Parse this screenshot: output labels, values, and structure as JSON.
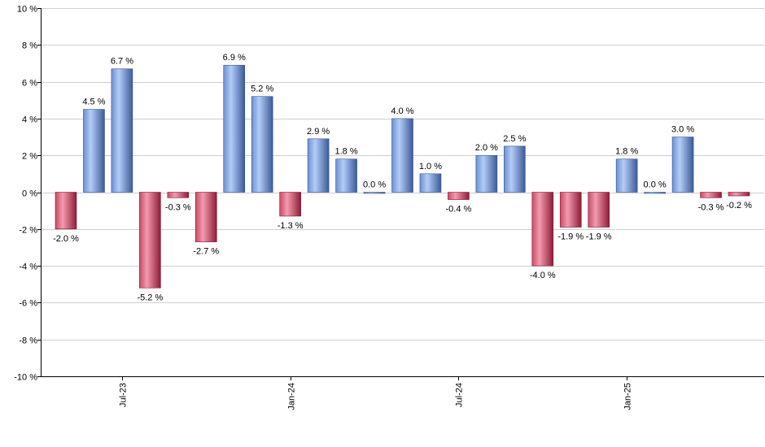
{
  "chart_data": {
    "type": "bar",
    "values": [
      -2.0,
      4.5,
      6.7,
      -5.2,
      -0.3,
      -2.7,
      6.9,
      5.2,
      -1.3,
      2.9,
      1.8,
      0.0,
      4.0,
      1.0,
      -0.4,
      2.0,
      2.5,
      -4.0,
      -1.9,
      -1.9,
      1.8,
      0.0,
      3.0,
      -0.3,
      -0.2
    ],
    "data_labels": [
      "-2.0 %",
      "4.5 %",
      "6.7 %",
      "-5.2 %",
      "-0.3 %",
      "-2.7 %",
      "6.9 %",
      "5.2 %",
      "-1.3 %",
      "2.9 %",
      "1.8 %",
      "0.0 %",
      "4.0 %",
      "1.0 %",
      "-0.4 %",
      "2.0 %",
      "2.5 %",
      "-4.0 %",
      "-1.9 %",
      "-1.9 %",
      "1.8 %",
      "0.0 %",
      "3.0 %",
      "-0.3 %",
      "-0.2 %"
    ],
    "x_ticks": [
      {
        "label": "Jul-23",
        "index": 2
      },
      {
        "label": "Jan-24",
        "index": 8
      },
      {
        "label": "Jul-24",
        "index": 14
      },
      {
        "label": "Jan-25",
        "index": 20
      }
    ],
    "y_ticks": [
      "10 %",
      "8 %",
      "6 %",
      "4 %",
      "2 %",
      "0 %",
      "-2 %",
      "-4 %",
      "-6 %",
      "-8 %",
      "-10 %"
    ],
    "ylim": [
      -10,
      10
    ],
    "y_step": 2,
    "grid": true,
    "title": "",
    "xlabel": "",
    "ylabel": "",
    "colors": {
      "positive_light": "#a9c4f5",
      "positive_dark": "#3f5f9e",
      "negative_light": "#f08aa0",
      "negative_dark": "#9e1f3c",
      "grid": "#cfcfcf",
      "axis": "#000000"
    }
  }
}
